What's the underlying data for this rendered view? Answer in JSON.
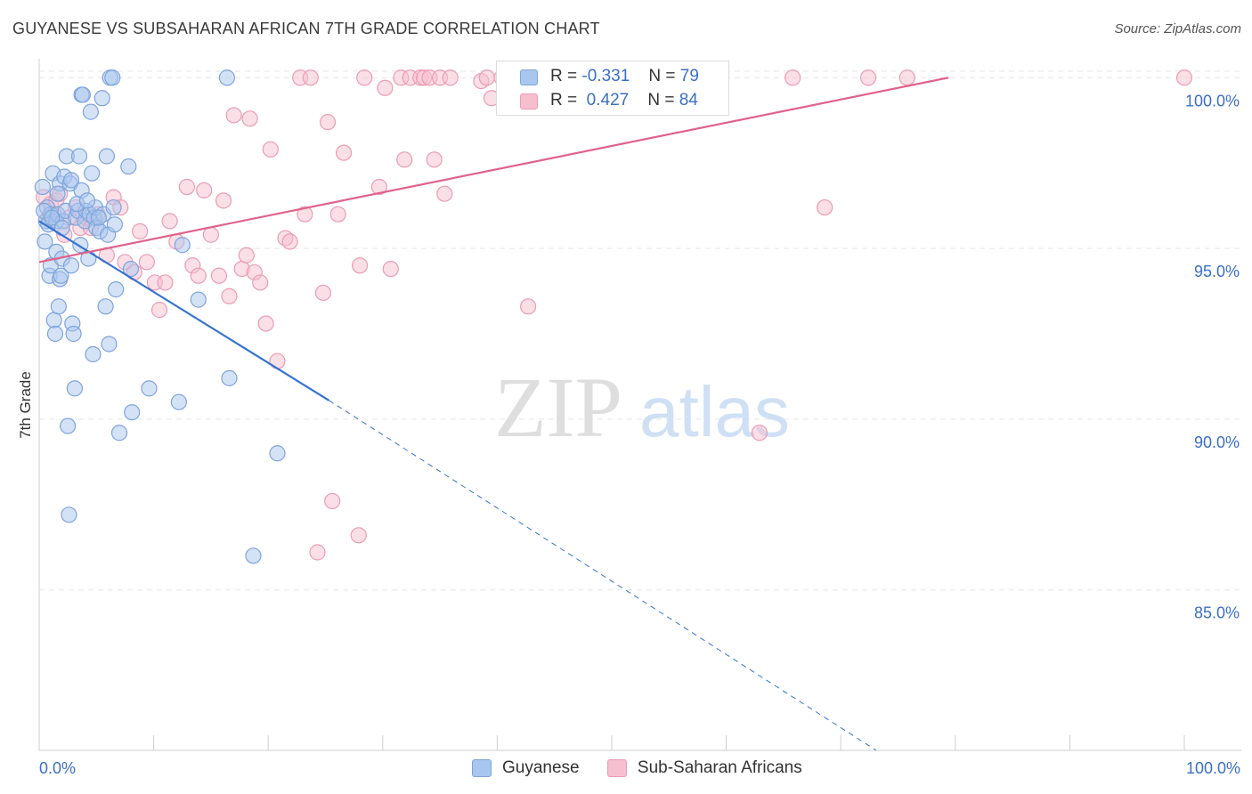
{
  "title": "GUYANESE VS SUBSAHARAN AFRICAN 7TH GRADE CORRELATION CHART",
  "source": "Source: ZipAtlas.com",
  "watermark": {
    "zip": "ZIP",
    "atlas": "atlas"
  },
  "stats": {
    "guyanese": {
      "r_label": "R =",
      "r_value": "-0.331",
      "n_label": "N =",
      "n_value": "79"
    },
    "subsaharan": {
      "r_label": "R =",
      "r_value": "0.427",
      "n_label": "N =",
      "n_value": "84"
    }
  },
  "legend": {
    "guyanese": "Guyanese",
    "subsaharan": "Sub-Saharan Africans"
  },
  "colors": {
    "guyanese_fill": "#a9c6ee",
    "guyanese_stroke": "#7ea4dc",
    "guyanese_line": "#3472d0",
    "subsaharan_fill": "#f6bfd0",
    "subsaharan_stroke": "#ea9cb5",
    "subsaharan_line": "#e0628b",
    "axis_text": "#3b6fc6",
    "grid": "#e6e6e6"
  },
  "chart_data": {
    "type": "scatter",
    "title": "GUYANESE VS SUBSAHARAN AFRICAN 7TH GRADE CORRELATION CHART",
    "xlabel": "",
    "ylabel": "7th Grade",
    "xlim": [
      0,
      100
    ],
    "ylim": [
      80.3,
      100.45
    ],
    "x_tick_labels": [
      "0.0%",
      "100.0%"
    ],
    "y_ticks": [
      85,
      90,
      95,
      100
    ],
    "y_tick_labels": [
      "85.0%",
      "90.0%",
      "95.0%",
      "100.0%"
    ],
    "grid": true,
    "legend_position": "bottom",
    "series": [
      {
        "name": "Guyanese",
        "r": -0.331,
        "n": 79,
        "trend": {
          "x_solid": [
            0,
            25.3
          ],
          "y_solid": [
            95.8,
            90.55
          ],
          "x_dashed": [
            25.3,
            73.1
          ],
          "y_dashed": [
            90.55,
            80.3
          ]
        },
        "points": [
          [
            0.3,
            96.8
          ],
          [
            0.5,
            95.2
          ],
          [
            0.6,
            95.8
          ],
          [
            0.7,
            96.2
          ],
          [
            0.8,
            95.7
          ],
          [
            0.9,
            94.2
          ],
          [
            1.0,
            94.5
          ],
          [
            1.0,
            96.0
          ],
          [
            1.2,
            97.2
          ],
          [
            1.3,
            92.9
          ],
          [
            1.4,
            92.5
          ],
          [
            1.5,
            94.9
          ],
          [
            1.5,
            95.8
          ],
          [
            1.6,
            96.0
          ],
          [
            1.7,
            93.3
          ],
          [
            1.8,
            94.1
          ],
          [
            1.8,
            96.9
          ],
          [
            1.9,
            94.2
          ],
          [
            2.0,
            94.7
          ],
          [
            2.1,
            95.8
          ],
          [
            2.2,
            97.1
          ],
          [
            2.3,
            96.1
          ],
          [
            2.4,
            97.7
          ],
          [
            2.5,
            89.8
          ],
          [
            2.6,
            87.2
          ],
          [
            2.7,
            96.9
          ],
          [
            2.8,
            97.0
          ],
          [
            2.9,
            92.8
          ],
          [
            3.0,
            92.5
          ],
          [
            3.1,
            90.9
          ],
          [
            3.2,
            95.9
          ],
          [
            3.4,
            96.1
          ],
          [
            3.5,
            97.7
          ],
          [
            3.6,
            95.1
          ],
          [
            3.7,
            96.7
          ],
          [
            3.7,
            99.5
          ],
          [
            3.8,
            99.5
          ],
          [
            4.0,
            95.8
          ],
          [
            4.1,
            96.1
          ],
          [
            4.3,
            94.7
          ],
          [
            4.4,
            96.0
          ],
          [
            4.5,
            99.0
          ],
          [
            4.6,
            97.2
          ],
          [
            4.7,
            91.9
          ],
          [
            4.8,
            95.9
          ],
          [
            4.9,
            96.2
          ],
          [
            5.0,
            95.6
          ],
          [
            5.3,
            95.5
          ],
          [
            5.5,
            99.4
          ],
          [
            5.6,
            96.0
          ],
          [
            5.8,
            93.3
          ],
          [
            5.9,
            97.7
          ],
          [
            6.0,
            95.4
          ],
          [
            6.1,
            92.2
          ],
          [
            6.2,
            100.0
          ],
          [
            6.4,
            100.0
          ],
          [
            6.5,
            96.2
          ],
          [
            6.6,
            95.7
          ],
          [
            6.7,
            93.8
          ],
          [
            7.0,
            89.6
          ],
          [
            7.8,
            97.4
          ],
          [
            8.0,
            94.4
          ],
          [
            8.1,
            90.2
          ],
          [
            9.6,
            90.9
          ],
          [
            12.2,
            90.5
          ],
          [
            12.5,
            95.1
          ],
          [
            13.9,
            93.5
          ],
          [
            16.4,
            100.0
          ],
          [
            16.6,
            91.2
          ],
          [
            18.7,
            86.0
          ],
          [
            20.8,
            89.0
          ],
          [
            0.4,
            96.1
          ],
          [
            1.1,
            95.9
          ],
          [
            2.0,
            95.6
          ],
          [
            3.3,
            96.3
          ],
          [
            4.2,
            96.4
          ],
          [
            5.2,
            95.9
          ],
          [
            1.6,
            96.6
          ],
          [
            2.8,
            94.5
          ]
        ]
      },
      {
        "name": "Sub-Saharan Africans",
        "r": 0.427,
        "n": 84,
        "trend": {
          "x": [
            0,
            79.4
          ],
          "y": [
            94.6,
            100.0
          ]
        },
        "points": [
          [
            0.4,
            96.5
          ],
          [
            0.8,
            95.9
          ],
          [
            1.0,
            96.3
          ],
          [
            1.3,
            96.0
          ],
          [
            1.5,
            96.4
          ],
          [
            1.8,
            96.6
          ],
          [
            2.2,
            95.4
          ],
          [
            2.6,
            95.9
          ],
          [
            3.2,
            96.2
          ],
          [
            3.6,
            95.6
          ],
          [
            4.1,
            95.9
          ],
          [
            4.5,
            95.6
          ],
          [
            5.1,
            96.0
          ],
          [
            5.9,
            94.8
          ],
          [
            6.5,
            96.5
          ],
          [
            7.1,
            96.2
          ],
          [
            7.5,
            94.6
          ],
          [
            8.3,
            94.3
          ],
          [
            8.8,
            95.5
          ],
          [
            9.4,
            94.6
          ],
          [
            10.1,
            94.0
          ],
          [
            10.5,
            93.2
          ],
          [
            11.0,
            94.0
          ],
          [
            11.4,
            95.8
          ],
          [
            12.0,
            95.2
          ],
          [
            12.9,
            96.8
          ],
          [
            13.4,
            94.5
          ],
          [
            13.9,
            94.2
          ],
          [
            14.4,
            96.7
          ],
          [
            15.0,
            95.4
          ],
          [
            15.7,
            94.2
          ],
          [
            16.1,
            96.4
          ],
          [
            16.6,
            93.6
          ],
          [
            17.0,
            98.9
          ],
          [
            17.7,
            94.4
          ],
          [
            18.1,
            94.8
          ],
          [
            18.4,
            98.8
          ],
          [
            18.8,
            94.3
          ],
          [
            19.3,
            94.0
          ],
          [
            19.8,
            92.8
          ],
          [
            20.2,
            97.9
          ],
          [
            20.8,
            91.7
          ],
          [
            21.5,
            95.3
          ],
          [
            21.9,
            95.2
          ],
          [
            22.8,
            100.0
          ],
          [
            23.2,
            96.0
          ],
          [
            23.7,
            100.0
          ],
          [
            24.3,
            86.1
          ],
          [
            24.8,
            93.7
          ],
          [
            25.2,
            98.7
          ],
          [
            25.6,
            87.6
          ],
          [
            26.1,
            96.0
          ],
          [
            26.6,
            97.8
          ],
          [
            27.9,
            86.6
          ],
          [
            28.0,
            94.5
          ],
          [
            28.4,
            100.0
          ],
          [
            29.7,
            96.8
          ],
          [
            30.2,
            99.7
          ],
          [
            30.7,
            94.4
          ],
          [
            31.6,
            100.0
          ],
          [
            31.9,
            97.6
          ],
          [
            32.4,
            100.0
          ],
          [
            33.3,
            100.0
          ],
          [
            33.6,
            100.0
          ],
          [
            34.1,
            100.0
          ],
          [
            34.5,
            97.6
          ],
          [
            35.0,
            100.0
          ],
          [
            35.4,
            96.6
          ],
          [
            35.9,
            100.0
          ],
          [
            38.6,
            99.9
          ],
          [
            39.1,
            100.0
          ],
          [
            39.5,
            99.4
          ],
          [
            40.4,
            100.0
          ],
          [
            40.9,
            100.0
          ],
          [
            41.8,
            100.0
          ],
          [
            42.7,
            93.3
          ],
          [
            45.0,
            100.0
          ],
          [
            47.7,
            100.0
          ],
          [
            59.0,
            99.9
          ],
          [
            62.9,
            89.6
          ],
          [
            65.8,
            100.0
          ],
          [
            68.6,
            96.2
          ],
          [
            72.4,
            100.0
          ],
          [
            75.8,
            100.0
          ],
          [
            100.0,
            100.0
          ]
        ]
      }
    ]
  }
}
